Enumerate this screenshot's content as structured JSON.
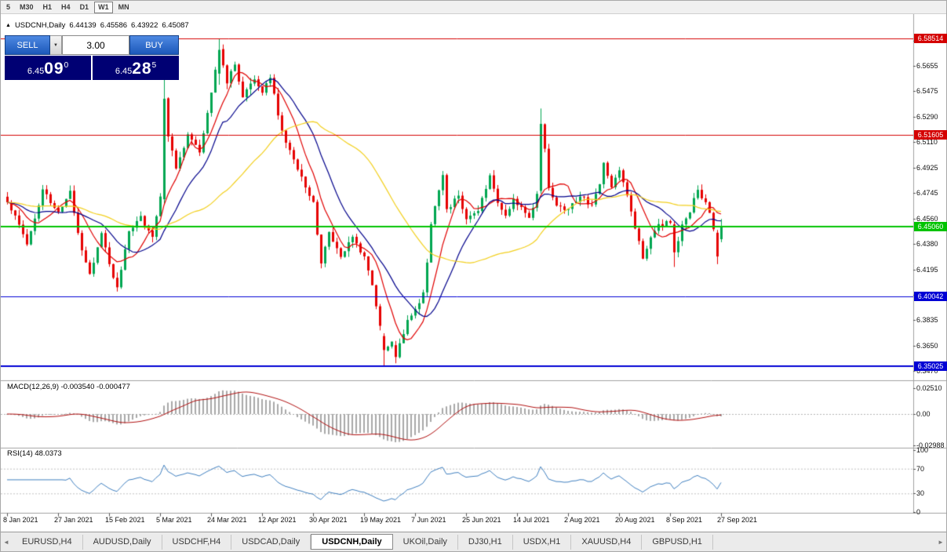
{
  "toolbar": {
    "timeframes": [
      "5",
      "M30",
      "H1",
      "H4",
      "D1",
      "W1",
      "MN"
    ],
    "active_timeframe": "W1"
  },
  "chart": {
    "collapse_icon": "▲",
    "symbol": "USDCNH,Daily",
    "open": "6.44139",
    "high": "6.45586",
    "low": "6.43922",
    "close": "6.45087"
  },
  "trade_panel": {
    "sell_label": "SELL",
    "buy_label": "BUY",
    "dropdown_icon": "▼",
    "volume": "3.00",
    "sell_price_main": "6.45",
    "sell_price_big": "09",
    "sell_price_sup": "0",
    "buy_price_main": "6.45",
    "buy_price_big": "28",
    "buy_price_sup": "5"
  },
  "indicators": {
    "macd_header": "MACD(12,26,9) -0.003540 -0.000477",
    "rsi_header": "RSI(14) 48.0373"
  },
  "axes": {
    "price_ticks": [
      "6.5835",
      "6.5655",
      "6.5475",
      "6.5290",
      "6.5110",
      "6.4925",
      "6.4745",
      "6.4560",
      "6.4380",
      "6.4195",
      "6.4015",
      "6.3835",
      "6.3650",
      "6.3470"
    ],
    "macd_ticks": [
      "0.02510",
      "0.00",
      "-0.02988"
    ],
    "rsi_ticks": [
      "100",
      "70",
      "30",
      "0"
    ],
    "dates": [
      "8 Jan 2021",
      "27 Jan 2021",
      "15 Feb 2021",
      "5 Mar 2021",
      "24 Mar 2021",
      "12 Apr 2021",
      "30 Apr 2021",
      "19 May 2021",
      "7 Jun 2021",
      "25 Jun 2021",
      "14 Jul 2021",
      "2 Aug 2021",
      "20 Aug 2021",
      "8 Sep 2021",
      "27 Sep 2021"
    ]
  },
  "levels": [
    {
      "label": "6.58514",
      "value": 6.58514,
      "color": "#d40000",
      "line_width": 1
    },
    {
      "label": "6.51605",
      "value": 6.51605,
      "color": "#d40000",
      "line_width": 1
    },
    {
      "label": "6.45060",
      "value": 6.4506,
      "color": "#00c300",
      "line_width": 2
    },
    {
      "label": "6.40042",
      "value": 6.40042,
      "color": "#0000d4",
      "line_width": 1
    },
    {
      "label": "6.35025",
      "value": 6.35025,
      "color": "#0000d4",
      "line_width": 2
    }
  ],
  "tabs": {
    "items": [
      "EURUSD,H4",
      "AUDUSD,Daily",
      "USDCHF,H4",
      "USDCAD,Daily",
      "USDCNH,Daily",
      "UKOil,Daily",
      "DJ30,H1",
      "USDX,H1",
      "XAUUSD,H4",
      "GBPUSD,H1"
    ],
    "active": "USDCNH,Daily",
    "scroll_left_icon": "◄",
    "scroll_right_icon": "►"
  },
  "chart_data": {
    "type": "candlestick",
    "symbol": "USDCNH",
    "timeframe": "Daily",
    "num_candles": 183,
    "y_range": [
      6.342,
      6.597
    ],
    "current_ohlc": [
      6.44139,
      6.45586,
      6.43922,
      6.45087
    ],
    "candle_up_color": "#00a651",
    "candle_down_color": "#e60000",
    "close_waypoints": [
      [
        0,
        6.468
      ],
      [
        2,
        6.458
      ],
      [
        5,
        6.438
      ],
      [
        9,
        6.477
      ],
      [
        13,
        6.461
      ],
      [
        16,
        6.476
      ],
      [
        19,
        6.433
      ],
      [
        21,
        6.416
      ],
      [
        24,
        6.446
      ],
      [
        26,
        6.424
      ],
      [
        28,
        6.407
      ],
      [
        31,
        6.447
      ],
      [
        34,
        6.458
      ],
      [
        37,
        6.443
      ],
      [
        39,
        6.472
      ],
      [
        40,
        6.542
      ],
      [
        41,
        6.515
      ],
      [
        43,
        6.492
      ],
      [
        46,
        6.516
      ],
      [
        49,
        6.503
      ],
      [
        52,
        6.547
      ],
      [
        54,
        6.577
      ],
      [
        56,
        6.553
      ],
      [
        58,
        6.567
      ],
      [
        60,
        6.543
      ],
      [
        63,
        6.556
      ],
      [
        65,
        6.546
      ],
      [
        67,
        6.557
      ],
      [
        70,
        6.519
      ],
      [
        73,
        6.498
      ],
      [
        76,
        6.479
      ],
      [
        78,
        6.468
      ],
      [
        80,
        6.424
      ],
      [
        82,
        6.446
      ],
      [
        85,
        6.429
      ],
      [
        88,
        6.443
      ],
      [
        91,
        6.429
      ],
      [
        93,
        6.409
      ],
      [
        95,
        6.379
      ],
      [
        96,
        6.362
      ],
      [
        98,
        6.368
      ],
      [
        99,
        6.357
      ],
      [
        102,
        6.384
      ],
      [
        104,
        6.391
      ],
      [
        106,
        6.403
      ],
      [
        107,
        6.425
      ],
      [
        108,
        6.452
      ],
      [
        110,
        6.477
      ],
      [
        111,
        6.487
      ],
      [
        112,
        6.463
      ],
      [
        115,
        6.472
      ],
      [
        117,
        6.456
      ],
      [
        120,
        6.462
      ],
      [
        122,
        6.477
      ],
      [
        123,
        6.487
      ],
      [
        125,
        6.468
      ],
      [
        127,
        6.458
      ],
      [
        129,
        6.47
      ],
      [
        131,
        6.464
      ],
      [
        133,
        6.457
      ],
      [
        135,
        6.474
      ],
      [
        136,
        6.524
      ],
      [
        137,
        6.506
      ],
      [
        138,
        6.478
      ],
      [
        140,
        6.466
      ],
      [
        143,
        6.463
      ],
      [
        146,
        6.472
      ],
      [
        149,
        6.466
      ],
      [
        151,
        6.481
      ],
      [
        152,
        6.496
      ],
      [
        154,
        6.479
      ],
      [
        156,
        6.491
      ],
      [
        158,
        6.473
      ],
      [
        160,
        6.449
      ],
      [
        162,
        6.428
      ],
      [
        164,
        6.443
      ],
      [
        166,
        6.452
      ],
      [
        169,
        6.453
      ],
      [
        170,
        6.432
      ],
      [
        172,
        6.452
      ],
      [
        174,
        6.461
      ],
      [
        176,
        6.477
      ],
      [
        178,
        6.468
      ],
      [
        180,
        6.449
      ],
      [
        181,
        6.429
      ],
      [
        182,
        6.451
      ]
    ],
    "ohlc_overrides": {
      "40": [
        6.47,
        6.563,
        6.466,
        6.542
      ],
      "54": [
        6.56,
        6.5852,
        6.552,
        6.577
      ],
      "96": [
        6.372,
        6.374,
        6.3505,
        6.362
      ],
      "99": [
        6.3655,
        6.3685,
        6.3525,
        6.357
      ],
      "136": [
        6.476,
        6.535,
        6.474,
        6.524
      ],
      "170": [
        6.452,
        6.454,
        6.4215,
        6.432
      ],
      "181": [
        6.446,
        6.448,
        6.4235,
        6.429
      ],
      "182": [
        6.44139,
        6.45586,
        6.43922,
        6.45087
      ]
    },
    "moving_averages": [
      {
        "period": 8,
        "color": "#e00000"
      },
      {
        "period": 16,
        "color": "#00008b"
      },
      {
        "period": 40,
        "color": "#f2cf1d"
      }
    ],
    "macd": {
      "fast": 12,
      "slow": 26,
      "signal": 9,
      "current_main": -0.00354,
      "current_signal": -0.000477,
      "axis_max": 0.0251,
      "axis_min": -0.02988,
      "histogram_color": "#a8a8a8",
      "signal_color": "#b01010"
    },
    "rsi": {
      "period": 14,
      "current": 48.0373,
      "color": "#3f7fbf",
      "levels": [
        70,
        30
      ]
    }
  }
}
